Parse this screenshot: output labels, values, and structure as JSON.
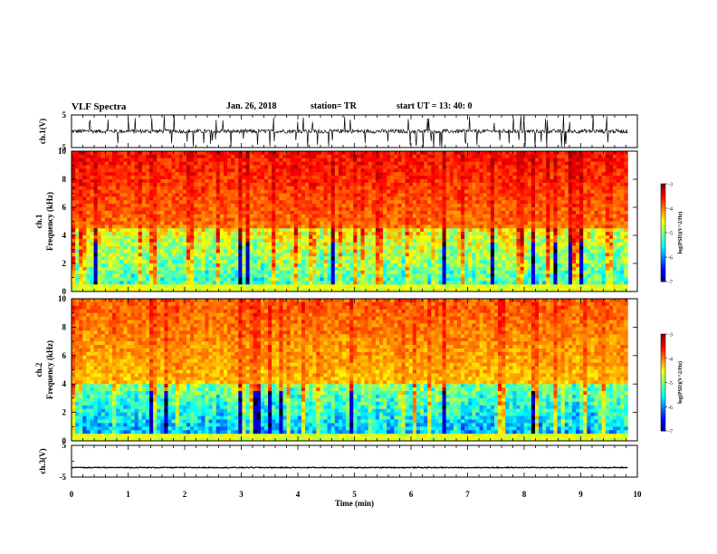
{
  "header": {
    "title": "VLF Spectra",
    "date": "Jan. 26, 2018",
    "station": "station= TR",
    "start": "start  UT =  13: 40: 0"
  },
  "chart_data": [
    {
      "type": "line",
      "name": "ch1-waveform",
      "ylabel": "ch.1(V)",
      "ylim": [
        -5,
        5
      ],
      "yticks": [
        5,
        -5
      ],
      "xlim": [
        0,
        10
      ],
      "baseline": 0,
      "noise_amplitude": 0.6,
      "spike_amplitude": 5
    },
    {
      "type": "heatmap",
      "name": "ch1-spectrogram",
      "ylabel_top": "ch.1",
      "ylabel": "Frequency (kHz)",
      "ylim": [
        0,
        10
      ],
      "yticks": [
        0,
        2,
        4,
        6,
        8,
        10
      ],
      "xlim": [
        0,
        9.83
      ],
      "colorbar": {
        "label": "log(PSD)(V^2/Hz)",
        "ticks": [
          -3,
          -4,
          -5,
          -6,
          -7
        ],
        "range": [
          -7,
          -3
        ]
      },
      "low_band_top_khz": 4.5,
      "high_band_level": -3.6,
      "low_band_level": -5.6
    },
    {
      "type": "heatmap",
      "name": "ch2-spectrogram",
      "ylabel_top": "ch.2",
      "ylabel": "Frequency (kHz)",
      "ylim": [
        0,
        10
      ],
      "yticks": [
        0,
        2,
        4,
        6,
        8,
        10
      ],
      "xlim": [
        0,
        9.83
      ],
      "colorbar": {
        "label": "log(PSD)(V^2/Hz)",
        "ticks": [
          -3,
          -4,
          -5,
          -6,
          -7
        ],
        "range": [
          -7,
          -3
        ]
      },
      "low_band_top_khz": 4.0,
      "high_band_level": -3.9,
      "low_band_level": -6.1
    },
    {
      "type": "line",
      "name": "ch3-waveform",
      "ylabel": "ch.3(V)",
      "ylim": [
        -5,
        5
      ],
      "yticks": [
        5,
        -5
      ],
      "xlim": [
        0,
        10
      ],
      "xlabel": "Time (min)",
      "xticks": [
        0,
        1,
        2,
        3,
        4,
        5,
        6,
        7,
        8,
        9,
        10
      ],
      "baseline": -2.0
    }
  ]
}
